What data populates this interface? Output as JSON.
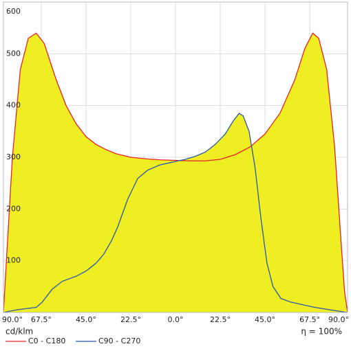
{
  "chart_data": {
    "type": "area-line",
    "x_label": "cd/klm",
    "annotation": "η = 100%",
    "xlim": [
      -86.5,
      86.5
    ],
    "ylim": [
      0,
      600
    ],
    "xticks": [
      {
        "value": -90,
        "label": "90.0°"
      },
      {
        "value": -67.5,
        "label": "67.5°"
      },
      {
        "value": -45,
        "label": "45.0°"
      },
      {
        "value": -22.5,
        "label": "22.5°"
      },
      {
        "value": 0,
        "label": "0.0°"
      },
      {
        "value": 22.5,
        "label": "22.5°"
      },
      {
        "value": 45,
        "label": "45.0°"
      },
      {
        "value": 67.5,
        "label": "67.5°"
      },
      {
        "value": 90,
        "label": "90.0°"
      }
    ],
    "yticks": [
      100,
      200,
      300,
      400,
      500,
      600
    ],
    "grid": true,
    "fill_color": "#eeee22",
    "series": [
      {
        "name": "C0 - C180",
        "color": "#e8202a",
        "x": [
          -86.5,
          -85,
          -82,
          -78,
          -74,
          -70,
          -66,
          -60,
          -55,
          -50,
          -45,
          -40,
          -35,
          -30,
          -22.5,
          -15,
          -7.5,
          0,
          7.5,
          15,
          22.5,
          30,
          37.5,
          45,
          52.5,
          60,
          65,
          69,
          72,
          76,
          80,
          83,
          85,
          86.5
        ],
        "values": [
          0,
          100,
          300,
          470,
          530,
          540,
          520,
          450,
          400,
          365,
          340,
          325,
          315,
          307,
          300,
          297,
          295,
          294,
          293,
          293,
          296,
          305,
          320,
          345,
          385,
          450,
          510,
          540,
          530,
          470,
          320,
          150,
          40,
          0
        ]
      },
      {
        "name": "C90 - C270",
        "color": "#2a55b0",
        "x": [
          -86.5,
          -80,
          -70,
          -67,
          -62,
          -57,
          -50,
          -45,
          -40,
          -36,
          -32,
          -29,
          -24,
          -19,
          -14,
          -8,
          0,
          5,
          10,
          15,
          20,
          25,
          29,
          32,
          34,
          37,
          40,
          43,
          46,
          49,
          53,
          58,
          64,
          70,
          78,
          86.5
        ],
        "values": [
          0,
          5,
          10,
          20,
          45,
          60,
          70,
          80,
          95,
          113,
          140,
          166,
          219,
          259,
          275,
          285,
          292,
          296,
          302,
          310,
          325,
          345,
          370,
          385,
          380,
          350,
          280,
          180,
          95,
          50,
          27,
          20,
          15,
          10,
          5,
          0
        ]
      }
    ]
  }
}
